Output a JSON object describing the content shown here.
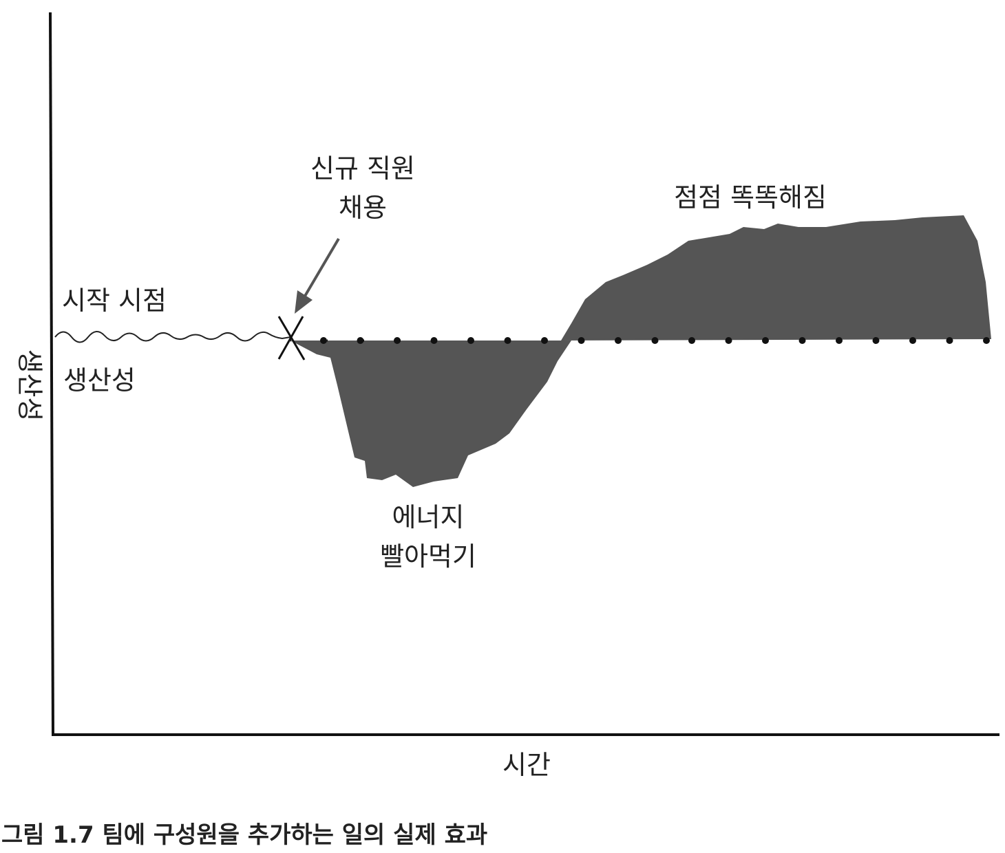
{
  "axes": {
    "y_label": "생산성",
    "x_label": "시간"
  },
  "annotations": {
    "start": [
      "시작 시점",
      "생산성"
    ],
    "new_hire": [
      "신규 직원",
      "채용"
    ],
    "smarter": "점점 똑똑해짐",
    "drain": [
      "에너지",
      "빨아먹기"
    ]
  },
  "caption": "그림 1.7 팀에 구성원을 추가하는 일의 실제 효과"
}
